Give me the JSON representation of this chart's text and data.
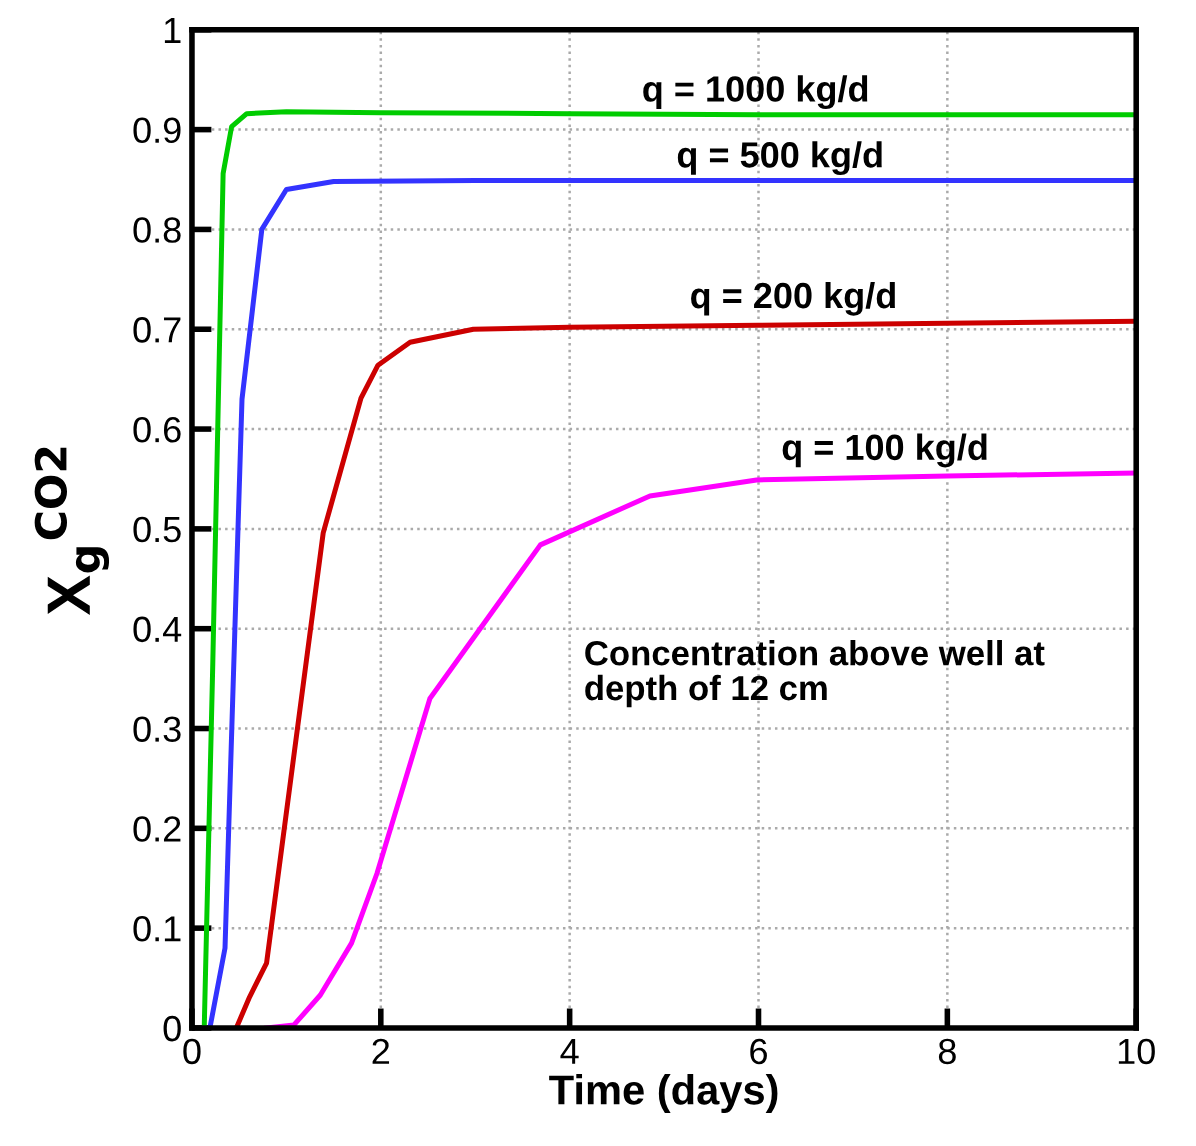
{
  "chart_data": {
    "type": "line",
    "xlabel": "Time (days)",
    "ylabel": "X$_{g}$$^{CO2}$",
    "xlim": [
      0,
      10
    ],
    "ylim": [
      0,
      1
    ],
    "xticks": [
      0,
      2,
      4,
      6,
      8,
      10
    ],
    "yticks": [
      0,
      0.1,
      0.2,
      0.3,
      0.4,
      0.5,
      0.6,
      0.7,
      0.8,
      0.9,
      1
    ],
    "grid": true,
    "legend": false,
    "marker": "none",
    "line_style": "solid",
    "series": [
      {
        "name": "q = 1000 kg/d",
        "color": "#00cc00",
        "x": [
          0.13,
          0.22,
          0.33,
          0.42,
          0.58,
          1.0,
          2.0,
          4.0,
          6.0,
          8.0,
          10.0
        ],
        "values": [
          0,
          0.363,
          0.856,
          0.903,
          0.916,
          0.918,
          0.917,
          0.916,
          0.915,
          0.915,
          0.915
        ]
      },
      {
        "name": "q = 500 kg/d",
        "color": "#3333ff",
        "x": [
          0.19,
          0.26,
          0.35,
          0.53,
          0.74,
          1.0,
          1.5,
          3.0,
          6.0,
          10.0
        ],
        "values": [
          0,
          0.035,
          0.08,
          0.63,
          0.8,
          0.84,
          0.848,
          0.849,
          0.849,
          0.849
        ]
      },
      {
        "name": "q = 200 kg/d",
        "color": "#cc0000",
        "x": [
          0.47,
          0.61,
          0.79,
          1.39,
          1.79,
          1.97,
          2.31,
          2.98,
          4.0,
          6.0,
          8.0,
          10.0
        ],
        "values": [
          0,
          0.031,
          0.065,
          0.496,
          0.631,
          0.664,
          0.687,
          0.7,
          0.702,
          0.704,
          0.706,
          0.708
        ]
      },
      {
        "name": "q = 100 kg/d",
        "color": "#ff00ff",
        "x": [
          0.79,
          1.08,
          1.36,
          1.69,
          1.96,
          2.52,
          3.69,
          4.85,
          5.98,
          8.0,
          10.0
        ],
        "values": [
          0,
          0.003,
          0.033,
          0.085,
          0.155,
          0.33,
          0.484,
          0.533,
          0.549,
          0.553,
          0.556
        ]
      }
    ],
    "annotations": [
      "Concentration above well at\ndepth of 12 cm"
    ]
  }
}
